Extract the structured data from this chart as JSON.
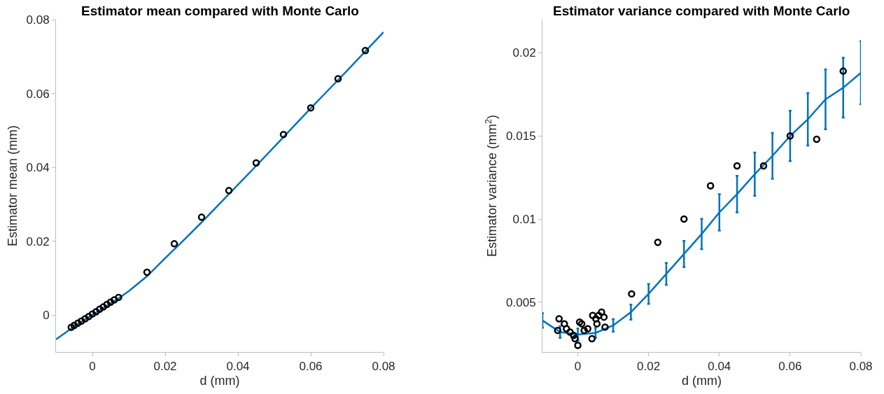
{
  "chart_data": [
    {
      "type": "line",
      "title": "Estimator mean compared with Monte Carlo",
      "xlabel": "d (mm)",
      "ylabel": "Estimator mean (mm)",
      "xlim": [
        -0.01,
        0.08
      ],
      "ylim": [
        -0.01,
        0.08
      ],
      "xticks": [
        0,
        0.02,
        0.04,
        0.06,
        0.08
      ],
      "yticks": [
        0,
        0.02,
        0.04,
        0.06,
        0.08
      ],
      "series": [
        {
          "color": "#0072bd",
          "marker": "none",
          "line_style": "solid",
          "x": [
            -0.01,
            -0.006,
            -0.005,
            -0.004,
            -0.003,
            -0.002,
            -0.001,
            0,
            0.001,
            0.002,
            0.003,
            0.004,
            0.005,
            0.006,
            0.007,
            0.01,
            0.015,
            0.02,
            0.025,
            0.03,
            0.035,
            0.04,
            0.045,
            0.05,
            0.055,
            0.06,
            0.065,
            0.07,
            0.075,
            0.08
          ],
          "values": [
            -0.0066,
            -0.0038,
            -0.0031,
            -0.0025,
            -0.0019,
            -0.0012,
            -0.0006,
            0,
            0.0006,
            0.0012,
            0.0019,
            0.0025,
            0.0031,
            0.0038,
            0.0044,
            0.0065,
            0.0105,
            0.0154,
            0.0202,
            0.0251,
            0.0302,
            0.0353,
            0.0404,
            0.0456,
            0.0508,
            0.056,
            0.0611,
            0.0662,
            0.0714,
            0.0766
          ]
        },
        {
          "type": "scatter",
          "color": "#000000",
          "marker": "circle",
          "x": [
            -0.0058,
            -0.005,
            -0.004,
            -0.003,
            -0.002,
            -0.001,
            0,
            0.001,
            0.002,
            0.003,
            0.004,
            0.005,
            0.006,
            0.0072,
            0.015,
            0.0225,
            0.03,
            0.0375,
            0.045,
            0.0525,
            0.06,
            0.0675,
            0.075
          ],
          "values": [
            -0.0033,
            -0.0028,
            -0.0022,
            -0.0016,
            -0.001,
            -0.0004,
            0.0003,
            0.0009,
            0.0016,
            0.0022,
            0.0029,
            0.0035,
            0.0041,
            0.0048,
            0.0116,
            0.0193,
            0.0265,
            0.0337,
            0.0412,
            0.0489,
            0.0561,
            0.064,
            0.0716
          ]
        }
      ]
    },
    {
      "type": "line",
      "title": "Estimator variance compared with Monte Carlo",
      "xlabel": "d (mm)",
      "ylabel": "Estimator variance (mm$^{2}$)",
      "xlim": [
        -0.01,
        0.08
      ],
      "ylim": [
        0.002,
        0.022
      ],
      "xticks": [
        0,
        0.02,
        0.04,
        0.06,
        0.08
      ],
      "yticks": [
        0.005,
        0.01,
        0.015,
        0.02
      ],
      "series": [
        {
          "color": "#0072bd",
          "marker": "none",
          "line_style": "solid",
          "x": [
            -0.01,
            -0.005,
            0,
            0.005,
            0.01,
            0.015,
            0.02,
            0.025,
            0.03,
            0.035,
            0.04,
            0.045,
            0.05,
            0.055,
            0.06,
            0.065,
            0.07,
            0.075,
            0.08
          ],
          "values": [
            0.0039,
            0.0032,
            0.00305,
            0.00315,
            0.0036,
            0.0044,
            0.0055,
            0.0067,
            0.0079,
            0.0091,
            0.0104,
            0.0115,
            0.0127,
            0.0138,
            0.015,
            0.016,
            0.0172,
            0.0179,
            0.0188
          ],
          "errors": [
            0.00044,
            0.00035,
            0.00036,
            0.0003,
            0.00038,
            0.00045,
            0.0006,
            0.00066,
            0.00078,
            0.00091,
            0.00109,
            0.0011,
            0.0013,
            0.00138,
            0.00152,
            0.00158,
            0.0018,
            0.0018,
            0.0019
          ]
        },
        {
          "type": "scatter",
          "color": "#000000",
          "marker": "circle",
          "x": [
            -0.0057,
            -0.0053,
            -0.0038,
            -0.0032,
            -0.0022,
            -0.0012,
            -0.0008,
            0,
            0.0005,
            0.0011,
            0.0018,
            0.0028,
            0.004,
            0.0042,
            0.0051,
            0.0054,
            0.0059,
            0.0067,
            0.0074,
            0.0077,
            0.0152,
            0.0226,
            0.03,
            0.0375,
            0.045,
            0.0525,
            0.06,
            0.0675,
            0.075
          ],
          "values": [
            0.0033,
            0.004,
            0.0037,
            0.0034,
            0.0032,
            0.003,
            0.0028,
            0.0024,
            0.0038,
            0.0037,
            0.0033,
            0.0034,
            0.0028,
            0.0042,
            0.004,
            0.0037,
            0.0042,
            0.0044,
            0.0041,
            0.0035,
            0.0055,
            0.0086,
            0.01,
            0.012,
            0.0132,
            0.0132,
            0.015,
            0.0148,
            0.0189
          ]
        }
      ]
    }
  ]
}
